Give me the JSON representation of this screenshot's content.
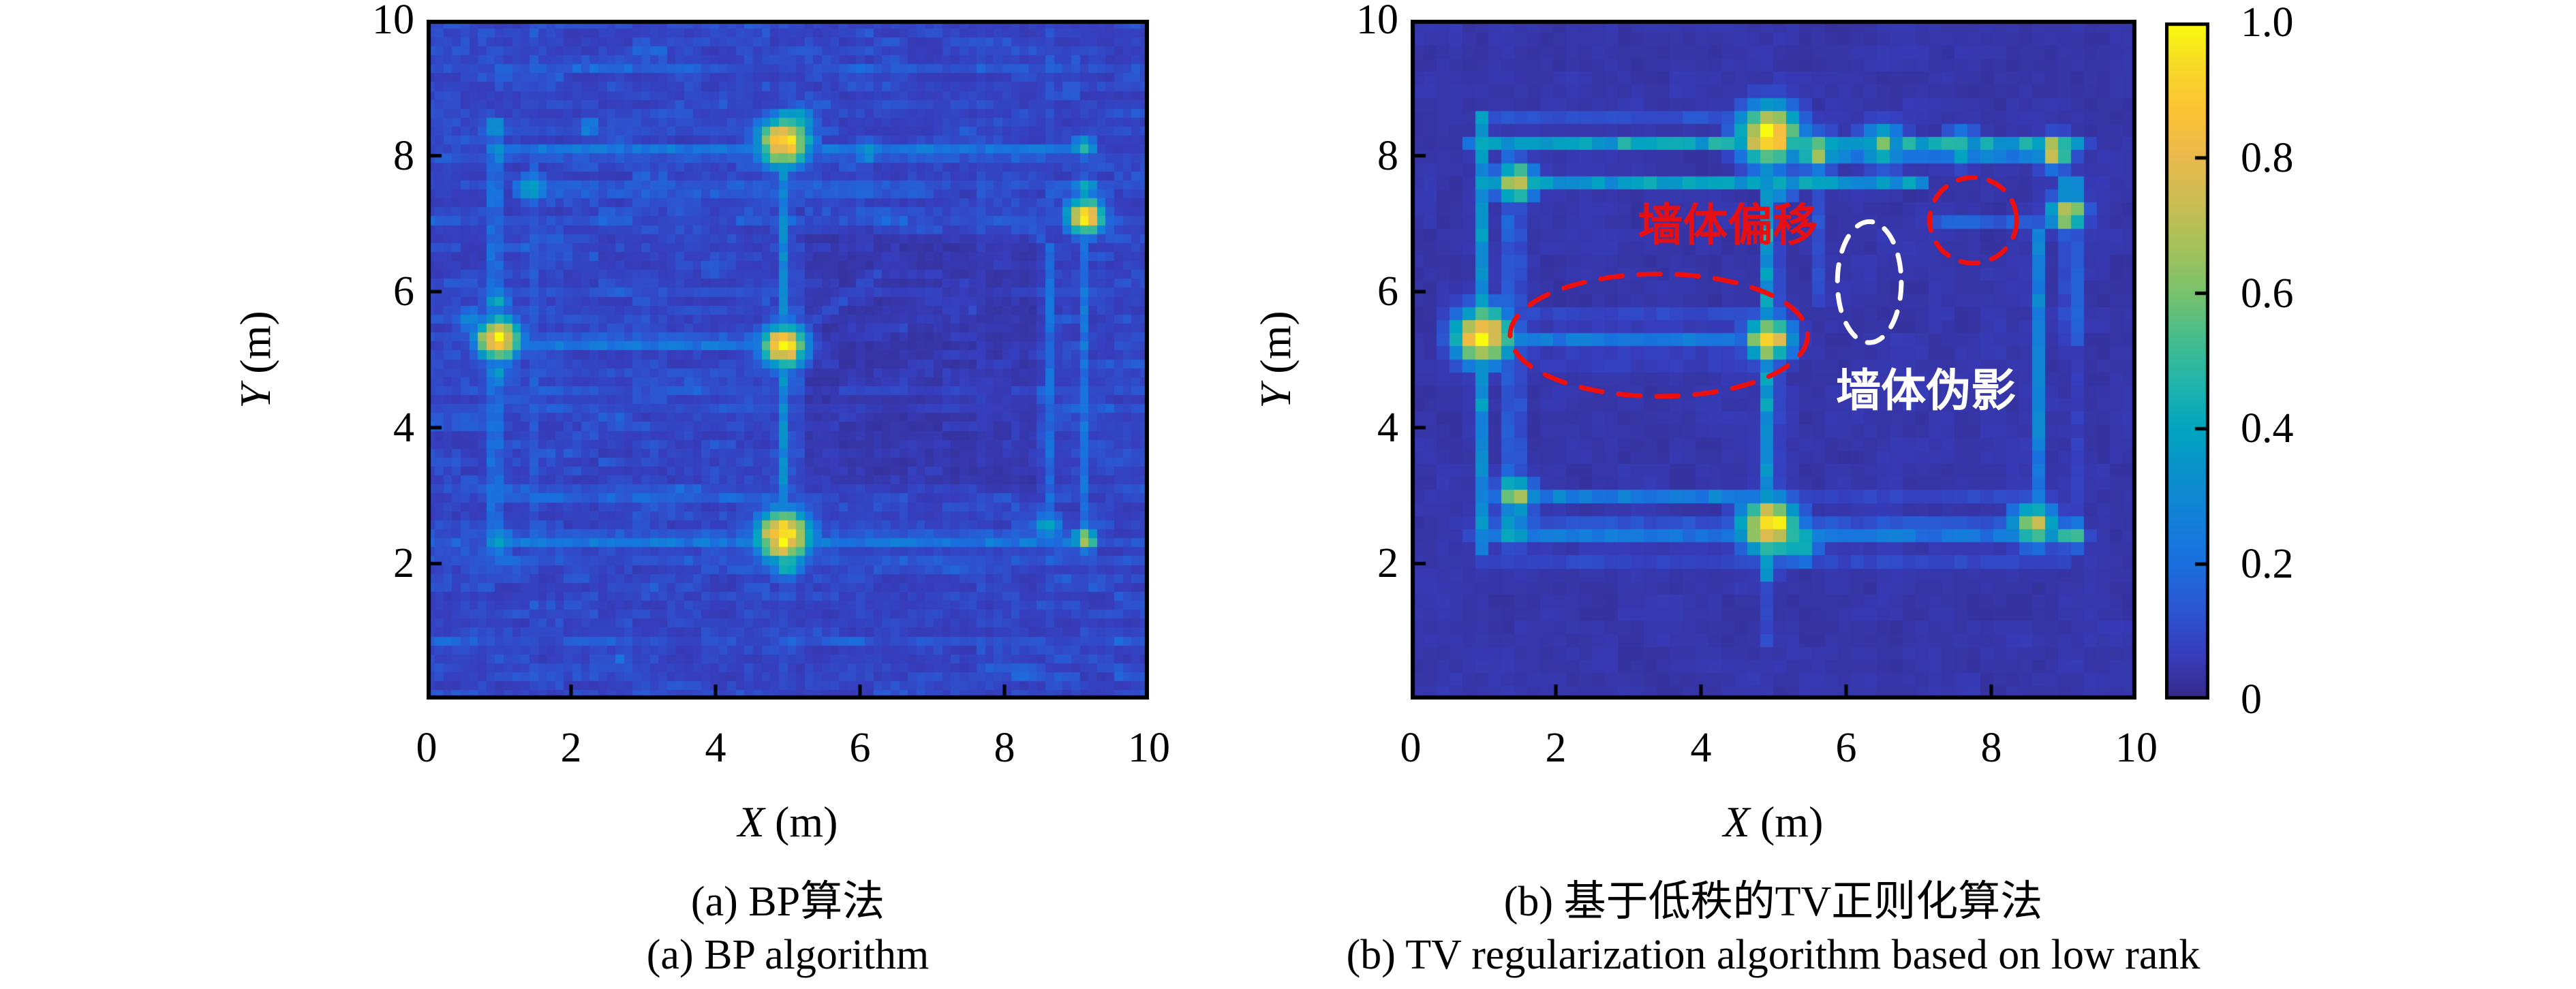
{
  "page": {
    "background": "#ffffff"
  },
  "chart_data": {
    "type": "heatmap",
    "description": "Through-wall radar imaging comparison: BP algorithm vs low-rank TV regularization algorithm",
    "x_range": [
      0,
      10
    ],
    "y_range": [
      0,
      10
    ],
    "value_range": [
      0,
      1
    ],
    "colormap": "parula",
    "colormap_stops": [
      "#352a87",
      "#363dbd",
      "#2c56d2",
      "#1a6fdf",
      "#1380d9",
      "#0a90cb",
      "#01a5c0",
      "#20b4ab",
      "#45bc8e",
      "#78c26d",
      "#a4c15a",
      "#cabd52",
      "#e9b94e",
      "#fbc235",
      "#f7d828",
      "#f9fb0e"
    ],
    "axes": {
      "x_label": "X (m)",
      "y_label": "Y (m)",
      "x_var": "X",
      "x_unit": "(m)",
      "y_var": "Y",
      "y_unit": "(m)",
      "x_tick_labels": [
        "0",
        "2",
        "4",
        "6",
        "8",
        "10"
      ],
      "x_tick_values": [
        0,
        2,
        4,
        6,
        8,
        10
      ],
      "y_tick_labels": [
        "10",
        "8",
        "6",
        "4",
        "2"
      ],
      "y_tick_values": [
        10,
        8,
        6,
        4,
        2
      ],
      "tick_mark_values": [
        2,
        4,
        6,
        8
      ]
    },
    "colorbar": {
      "tick_labels": [
        "1.0",
        "0.8",
        "0.6",
        "0.4",
        "0.2",
        "0"
      ],
      "tick_values": [
        1.0,
        0.8,
        0.6,
        0.4,
        0.2,
        0
      ],
      "range": [
        0,
        1
      ]
    },
    "panels": [
      {
        "id": "bp",
        "caption_zh": "(a) BP算法",
        "caption_en": "(a) BP algorithm",
        "noise": {
          "style": "streaky",
          "base": 0.055,
          "amp": 0.11,
          "grid": [
            84,
            76
          ],
          "dark_region": {
            "x1": 5.25,
            "y1": 3.05,
            "x2": 8.5,
            "y2": 6.85,
            "factor": 0.55
          }
        },
        "walls": [
          [
            0.9,
            8.42,
            4.6,
            8.42,
            0.17,
            0.09
          ],
          [
            0.9,
            8.05,
            9.25,
            8.05,
            0.26,
            0.1
          ],
          [
            1.4,
            7.5,
            7.0,
            7.5,
            0.24,
            0.09
          ],
          [
            8.7,
            7.5,
            9.2,
            7.5,
            0.22,
            0.09
          ],
          [
            7.3,
            7.1,
            9.2,
            7.1,
            0.2,
            0.09
          ],
          [
            0.9,
            5.25,
            5.05,
            5.25,
            0.3,
            0.09
          ],
          [
            1.0,
            5.67,
            4.9,
            5.67,
            0.13,
            0.08
          ],
          [
            1.0,
            4.8,
            4.95,
            4.8,
            0.11,
            0.08
          ],
          [
            1.0,
            4.47,
            4.95,
            4.47,
            0.13,
            0.08
          ],
          [
            0.9,
            2.95,
            4.95,
            2.95,
            0.16,
            0.09
          ],
          [
            0.9,
            2.35,
            9.25,
            2.35,
            0.28,
            0.1
          ],
          [
            1.0,
            2.1,
            8.9,
            2.1,
            0.15,
            0.09
          ],
          [
            0.95,
            2.1,
            0.95,
            8.4,
            0.27,
            0.09
          ],
          [
            1.45,
            2.4,
            1.45,
            8.0,
            0.16,
            0.09
          ],
          [
            4.95,
            1.85,
            4.95,
            8.6,
            0.3,
            0.1
          ],
          [
            8.62,
            2.4,
            8.62,
            6.65,
            0.19,
            0.09
          ],
          [
            9.12,
            2.3,
            9.12,
            7.05,
            0.21,
            0.09
          ],
          [
            4.95,
            0.45,
            4.95,
            1.85,
            0.1,
            0.13
          ],
          [
            4.95,
            8.6,
            4.95,
            9.6,
            0.09,
            0.13
          ],
          [
            5.05,
            5.3,
            6.25,
            6.25,
            0.11,
            0.11
          ],
          [
            0.25,
            5.3,
            0.9,
            5.3,
            0.12,
            0.1
          ]
        ],
        "targets": [
          [
            1.0,
            5.3,
            1.0,
            0.22
          ],
          [
            0.98,
            5.85,
            0.4,
            0.14
          ],
          [
            0.98,
            4.78,
            0.36,
            0.13
          ],
          [
            4.95,
            5.2,
            1.0,
            0.22
          ],
          [
            4.95,
            8.2,
            0.95,
            0.26
          ],
          [
            5.15,
            8.48,
            0.5,
            0.18
          ],
          [
            4.95,
            2.4,
            1.0,
            0.27
          ],
          [
            5.0,
            2.0,
            0.5,
            0.16
          ],
          [
            9.12,
            7.1,
            0.92,
            0.19
          ],
          [
            9.12,
            7.52,
            0.48,
            0.12
          ],
          [
            9.1,
            8.12,
            0.55,
            0.11
          ],
          [
            9.12,
            2.35,
            0.72,
            0.12
          ],
          [
            1.0,
            2.32,
            0.42,
            0.15
          ],
          [
            8.6,
            2.55,
            0.42,
            0.15
          ],
          [
            1.45,
            7.52,
            0.42,
            0.16
          ],
          [
            0.95,
            8.4,
            0.38,
            0.13
          ],
          [
            1.0,
            8.05,
            0.35,
            0.12
          ],
          [
            2.25,
            8.42,
            0.3,
            0.13
          ],
          [
            6.1,
            8.05,
            0.35,
            0.14
          ],
          [
            0.6,
            5.6,
            0.28,
            0.16
          ]
        ],
        "annotations": {
          "texts": [],
          "ellipses": []
        }
      },
      {
        "id": "tv",
        "caption_zh": "(b) 基于低秩的TV正则化算法",
        "caption_en": "(b) TV regularization algorithm based on low rank",
        "noise": {
          "style": "smooth",
          "base": 0.026,
          "amp": 0.035,
          "grid": [
            56,
            52
          ]
        },
        "walls": [
          [
            0.9,
            8.2,
            9.25,
            8.2,
            0.4,
            0.11
          ],
          [
            5.1,
            8.08,
            8.9,
            8.08,
            0.55,
            0.11
          ],
          [
            1.0,
            8.55,
            4.9,
            8.55,
            0.12,
            0.1
          ],
          [
            1.2,
            7.6,
            7.05,
            7.6,
            0.34,
            0.1
          ],
          [
            7.15,
            7.0,
            8.9,
            7.0,
            0.15,
            0.09
          ],
          [
            0.9,
            5.35,
            5.05,
            5.35,
            0.32,
            0.1
          ],
          [
            1.3,
            5.0,
            4.9,
            5.0,
            0.2,
            0.09
          ],
          [
            1.2,
            5.62,
            4.8,
            5.62,
            0.13,
            0.09
          ],
          [
            1.4,
            3.0,
            4.95,
            3.0,
            0.26,
            0.1
          ],
          [
            4.95,
            3.0,
            8.6,
            3.0,
            0.09,
            0.09
          ],
          [
            0.9,
            2.48,
            9.25,
            2.48,
            0.36,
            0.11
          ],
          [
            1.0,
            2.1,
            9.0,
            2.1,
            0.17,
            0.1
          ],
          [
            0.95,
            2.15,
            0.95,
            8.55,
            0.36,
            0.1
          ],
          [
            1.42,
            2.95,
            1.42,
            8.2,
            0.28,
            0.1
          ],
          [
            4.95,
            1.75,
            4.95,
            8.7,
            0.42,
            0.11
          ],
          [
            5.62,
            5.8,
            5.62,
            7.45,
            0.11,
            0.1
          ],
          [
            8.62,
            2.45,
            8.62,
            6.9,
            0.3,
            0.1
          ],
          [
            9.12,
            5.3,
            9.12,
            7.1,
            0.26,
            0.1
          ],
          [
            9.12,
            2.4,
            9.12,
            5.3,
            0.12,
            0.1
          ],
          [
            4.95,
            0.8,
            4.95,
            1.75,
            0.1,
            0.13
          ]
        ],
        "targets": [
          [
            1.0,
            5.35,
            1.0,
            0.28
          ],
          [
            4.95,
            5.3,
            0.92,
            0.22
          ],
          [
            4.95,
            8.3,
            1.0,
            0.3
          ],
          [
            5.6,
            8.06,
            0.72,
            0.18
          ],
          [
            4.95,
            2.55,
            1.0,
            0.28
          ],
          [
            5.35,
            2.3,
            0.55,
            0.2
          ],
          [
            1.45,
            7.6,
            0.8,
            0.2
          ],
          [
            5.1,
            7.55,
            0.45,
            0.15
          ],
          [
            1.45,
            3.0,
            0.72,
            0.18
          ],
          [
            1.4,
            2.48,
            0.5,
            0.16
          ],
          [
            8.6,
            2.58,
            0.78,
            0.22
          ],
          [
            8.88,
            8.05,
            0.85,
            0.16
          ],
          [
            9.05,
            7.15,
            0.85,
            0.17
          ],
          [
            9.1,
            7.5,
            0.5,
            0.13
          ],
          [
            9.12,
            2.42,
            0.65,
            0.13
          ],
          [
            6.5,
            8.15,
            0.55,
            0.22
          ],
          [
            7.6,
            8.12,
            0.5,
            0.18
          ]
        ],
        "annotations": {
          "texts": [
            {
              "label": "墙体偏移",
              "x": 4.37,
              "y": 7.03,
              "color": "#e60f14",
              "size": 66
            },
            {
              "label": "墙体伪影",
              "x": 7.1,
              "y": 4.6,
              "color": "#ffffff",
              "size": 66
            }
          ],
          "ellipses": [
            {
              "cx": 3.42,
              "cy": 5.36,
              "rx": 2.05,
              "ry": 0.9,
              "color": "#ee0f0f",
              "dash": "32 24"
            },
            {
              "cx": 6.32,
              "cy": 6.14,
              "rx": 0.44,
              "ry": 0.89,
              "color": "#ffffff",
              "dash": "24 20"
            },
            {
              "cx": 7.75,
              "cy": 7.05,
              "rx": 0.6,
              "ry": 0.63,
              "color": "#ee0f0f",
              "dash": "26 20"
            }
          ]
        }
      }
    ]
  }
}
